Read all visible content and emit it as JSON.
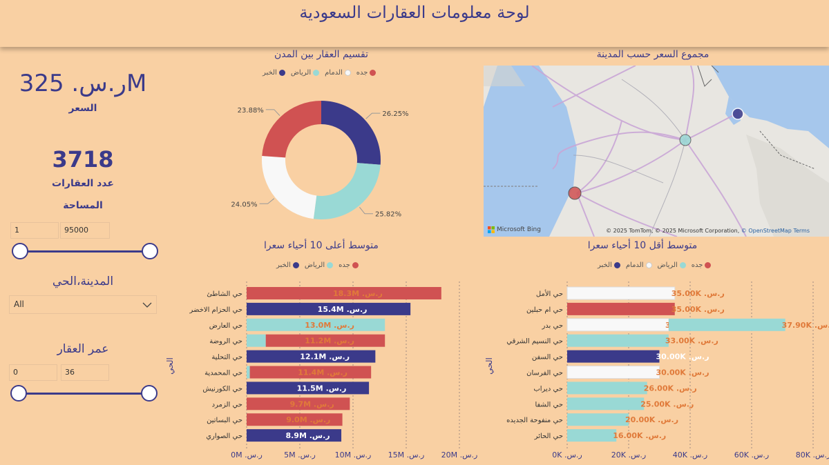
{
  "header": {
    "title": "لوحة معلومات العقارات السعودية"
  },
  "kpis": {
    "price_value": "ر.س. 325M",
    "price_label": "السعر",
    "count_value": "3718",
    "count_label": "عدد العقارات"
  },
  "filters": {
    "area": {
      "title": "المساحة",
      "min": "1",
      "max": "95000"
    },
    "city_district": {
      "title": "المدينة،الحي",
      "selected": "All"
    },
    "age": {
      "title": "عمر العقار",
      "min": "0",
      "max": "36"
    }
  },
  "colors": {
    "jeddah": "#d05252",
    "dammam": "#f8f8f8",
    "riyadh": "#99d9d5",
    "khobar": "#3b3a8a"
  },
  "donut": {
    "title": "تقسيم العقار بين المدن",
    "legend": [
      {
        "name": "جده",
        "color": "#d05252"
      },
      {
        "name": "الدمام",
        "color": "#f8f8f8"
      },
      {
        "name": "الرياض",
        "color": "#99d9d5"
      },
      {
        "name": "الخبر",
        "color": "#3b3a8a"
      }
    ]
  },
  "map": {
    "title": "مجموع السعر حسب المدينة",
    "brand": "Microsoft Bing",
    "attribution_prefix": "© 2025 TomTom, © 2025 Microsoft Corporation,",
    "osm": "© OpenStreetMap",
    "terms": "Terms"
  },
  "top10": {
    "title": "متوسط أعلى 10 أحياء سعرا",
    "axis_label": "الحي",
    "legend": [
      {
        "name": "جده",
        "color": "#d05252"
      },
      {
        "name": "الرياض",
        "color": "#99d9d5"
      },
      {
        "name": "الخبر",
        "color": "#3b3a8a"
      }
    ]
  },
  "bottom10": {
    "title": "متوسط أقل 10 أحياء سعرا",
    "axis_label": "الحي",
    "legend": [
      {
        "name": "جده",
        "color": "#d05252"
      },
      {
        "name": "الرياض",
        "color": "#99d9d5"
      },
      {
        "name": "الدمام",
        "color": "#f8f8f8"
      },
      {
        "name": "الخبر",
        "color": "#3b3a8a"
      }
    ]
  },
  "chart_data": [
    {
      "type": "pie",
      "title": "تقسيم العقار بين المدن",
      "categories": [
        "الخبر",
        "الرياض",
        "الدمام",
        "جده"
      ],
      "values": [
        26.25,
        25.82,
        24.05,
        23.88
      ],
      "labels": [
        "26.25%",
        "25.82%",
        "24.05%",
        "23.88%"
      ],
      "colors": [
        "#3b3a8a",
        "#99d9d5",
        "#f8f8f8",
        "#d05252"
      ],
      "legend": "top"
    },
    {
      "type": "bar",
      "title": "متوسط أعلى 10 أحياء سعرا",
      "ylabel": "الحي",
      "xlim": [
        0,
        20
      ],
      "xticks": [
        "ر.س. 0M",
        "ر.س. 5M",
        "ر.س. 10M",
        "ر.س. 15M",
        "ر.س. 20M"
      ],
      "xtick_values": [
        0,
        5,
        10,
        15,
        20
      ],
      "categories": [
        "حي الشاطئ",
        "حي الحزام الاخضر",
        "حي العارض",
        "حي الروضة",
        "حي التحلية",
        "حي المحمدية",
        "حي الكورنيش",
        "حي الزمرد",
        "حي البساتين",
        "حي الصواري"
      ],
      "bars": [
        {
          "segments": [
            {
              "city": "jeddah",
              "value": 18.3
            }
          ],
          "label": "ر.س. 18.3M"
        },
        {
          "segments": [
            {
              "city": "khobar",
              "value": 15.4
            }
          ],
          "label": "ر.س. 15.4M"
        },
        {
          "segments": [
            {
              "city": "riyadh",
              "value": 13.0
            }
          ],
          "label": "ر.س. 13.0M"
        },
        {
          "segments": [
            {
              "city": "riyadh",
              "value": 1.8
            },
            {
              "city": "jeddah",
              "value": 11.2
            }
          ],
          "label": "ر.س. 11.2M"
        },
        {
          "segments": [
            {
              "city": "khobar",
              "value": 12.1
            }
          ],
          "label": "ر.س. 12.1M"
        },
        {
          "segments": [
            {
              "city": "riyadh",
              "value": 0.3
            },
            {
              "city": "jeddah",
              "value": 11.4
            }
          ],
          "label": "ر.س. 11.4M"
        },
        {
          "segments": [
            {
              "city": "khobar",
              "value": 11.5
            }
          ],
          "label": "ر.س. 11.5M"
        },
        {
          "segments": [
            {
              "city": "jeddah",
              "value": 9.7
            }
          ],
          "label": "ر.س. 9.7M"
        },
        {
          "segments": [
            {
              "city": "jeddah",
              "value": 9.0
            }
          ],
          "label": "ر.س. 9.0M"
        },
        {
          "segments": [
            {
              "city": "khobar",
              "value": 8.9
            }
          ],
          "label": "ر.س. 8.9M"
        }
      ]
    },
    {
      "type": "bar",
      "title": "متوسط أقل 10 أحياء سعرا",
      "ylabel": "الحي",
      "xlim": [
        0,
        80
      ],
      "xticks": [
        "ر.س. 0K",
        "ر.س. 20K",
        "ر.س. 40K",
        "ر.س. 60K",
        "ر.س. 80K"
      ],
      "xtick_values": [
        0,
        20,
        40,
        60,
        80
      ],
      "categories": [
        "حي الأمل",
        "حي ام حبلين",
        "حي بدر",
        "حي النسيم الشرقي",
        "حي السفن",
        "حي الفرسان",
        "حي ديراب",
        "حي الشفا",
        "حي منفوحة الجديده",
        "حي الحائر"
      ],
      "bars": [
        {
          "segments": [
            {
              "city": "dammam",
              "value": 35.0,
              "label": "ر.س. 35.00K"
            }
          ]
        },
        {
          "segments": [
            {
              "city": "jeddah",
              "value": 35.0,
              "label": "ر.س. 35.00K"
            }
          ]
        },
        {
          "segments": [
            {
              "city": "dammam",
              "value": 33.04,
              "label": "ر.س. 33.04K"
            },
            {
              "city": "riyadh",
              "value": 37.9,
              "label": "ر.س. 37.90K"
            }
          ]
        },
        {
          "segments": [
            {
              "city": "riyadh",
              "value": 33.0,
              "label": "ر.س. 33.00K"
            }
          ]
        },
        {
          "segments": [
            {
              "city": "khobar",
              "value": 30.0,
              "label": "ر.س. 30.00K"
            }
          ]
        },
        {
          "segments": [
            {
              "city": "dammam",
              "value": 30.0,
              "label": "ر.س. 30.00K"
            }
          ]
        },
        {
          "segments": [
            {
              "city": "riyadh",
              "value": 26.0,
              "label": "ر.س. 26.00K"
            }
          ]
        },
        {
          "segments": [
            {
              "city": "riyadh",
              "value": 25.0,
              "label": "ر.س. 25.00K"
            }
          ]
        },
        {
          "segments": [
            {
              "city": "riyadh",
              "value": 20.0,
              "label": "ر.س. 20.00K"
            }
          ]
        },
        {
          "segments": [
            {
              "city": "riyadh",
              "value": 16.0,
              "label": "ر.س. 16.00K"
            }
          ]
        }
      ]
    }
  ]
}
